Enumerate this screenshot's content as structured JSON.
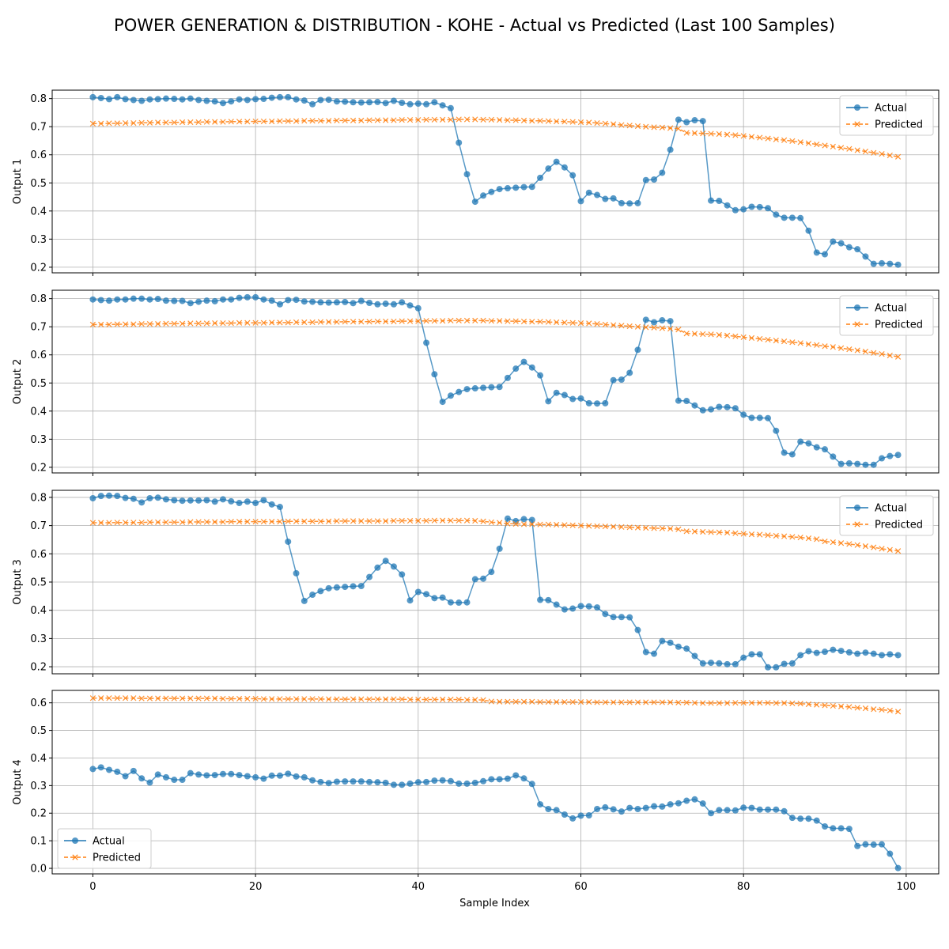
{
  "title": "POWER GENERATION & DISTRIBUTION - KOHE - Actual vs Predicted (Last 100 Samples)",
  "colors": {
    "actual": "#1f77b4",
    "predicted": "#ff7f0e",
    "grid": "#b0b0b0"
  },
  "chart_data": [
    {
      "type": "line",
      "ylabel": "Output 1",
      "xlabel": "",
      "xlim": [
        -5,
        104
      ],
      "ylim": [
        0.18,
        0.83
      ],
      "yticks": [
        0.2,
        0.3,
        0.4,
        0.5,
        0.6,
        0.7,
        0.8
      ],
      "xticks": [
        0,
        20,
        40,
        60,
        80,
        100
      ],
      "legend": "top-right",
      "grid": true,
      "series": [
        {
          "name": "Actual",
          "marker": "circle",
          "values": [
            0.805,
            0.802,
            0.798,
            0.805,
            0.798,
            0.795,
            0.792,
            0.797,
            0.798,
            0.8,
            0.799,
            0.797,
            0.8,
            0.795,
            0.792,
            0.79,
            0.784,
            0.79,
            0.797,
            0.795,
            0.798,
            0.799,
            0.803,
            0.805,
            0.805,
            0.797,
            0.793,
            0.78,
            0.795,
            0.796,
            0.79,
            0.789,
            0.787,
            0.786,
            0.787,
            0.788,
            0.784,
            0.792,
            0.785,
            0.78,
            0.782,
            0.78,
            0.787,
            0.776,
            0.766,
            0.643,
            0.531,
            0.433,
            0.455,
            0.468,
            0.478,
            0.481,
            0.483,
            0.485,
            0.486,
            0.518,
            0.551,
            0.575,
            0.555,
            0.527,
            0.435,
            0.465,
            0.457,
            0.443,
            0.445,
            0.428,
            0.427,
            0.428,
            0.51,
            0.512,
            0.536,
            0.618,
            0.725,
            0.716,
            0.723,
            0.72,
            0.437,
            0.436,
            0.42,
            0.403,
            0.406,
            0.415,
            0.414,
            0.41,
            0.387,
            0.376,
            0.376,
            0.375,
            0.33,
            0.252,
            0.246,
            0.291,
            0.285,
            0.271,
            0.264,
            0.238,
            0.212,
            0.214,
            0.212,
            0.209
          ]
        },
        {
          "name": "Predicted",
          "marker": "x",
          "values": [
            0.711,
            0.711,
            0.712,
            0.712,
            0.713,
            0.713,
            0.714,
            0.714,
            0.715,
            0.715,
            0.715,
            0.716,
            0.716,
            0.716,
            0.717,
            0.717,
            0.717,
            0.718,
            0.718,
            0.718,
            0.719,
            0.719,
            0.719,
            0.72,
            0.72,
            0.72,
            0.721,
            0.721,
            0.721,
            0.721,
            0.722,
            0.722,
            0.722,
            0.722,
            0.723,
            0.723,
            0.723,
            0.723,
            0.724,
            0.724,
            0.724,
            0.725,
            0.725,
            0.725,
            0.725,
            0.726,
            0.726,
            0.726,
            0.725,
            0.725,
            0.724,
            0.723,
            0.723,
            0.722,
            0.721,
            0.721,
            0.72,
            0.719,
            0.718,
            0.717,
            0.716,
            0.715,
            0.713,
            0.711,
            0.709,
            0.706,
            0.704,
            0.702,
            0.7,
            0.698,
            0.697,
            0.695,
            0.693,
            0.678,
            0.677,
            0.676,
            0.675,
            0.674,
            0.672,
            0.67,
            0.667,
            0.664,
            0.661,
            0.658,
            0.655,
            0.652,
            0.649,
            0.645,
            0.641,
            0.637,
            0.633,
            0.629,
            0.625,
            0.621,
            0.616,
            0.612,
            0.607,
            0.603,
            0.598,
            0.593
          ]
        }
      ]
    },
    {
      "type": "line",
      "ylabel": "Output 2",
      "xlabel": "",
      "xlim": [
        -5,
        104
      ],
      "ylim": [
        0.18,
        0.83
      ],
      "yticks": [
        0.2,
        0.3,
        0.4,
        0.5,
        0.6,
        0.7,
        0.8
      ],
      "xticks": [
        0,
        20,
        40,
        60,
        80,
        100
      ],
      "legend": "top-right",
      "grid": true,
      "series": [
        {
          "name": "Actual",
          "marker": "circle",
          "values": [
            0.797,
            0.795,
            0.793,
            0.797,
            0.797,
            0.8,
            0.8,
            0.797,
            0.799,
            0.793,
            0.792,
            0.792,
            0.784,
            0.789,
            0.793,
            0.791,
            0.797,
            0.797,
            0.803,
            0.805,
            0.805,
            0.797,
            0.793,
            0.78,
            0.795,
            0.796,
            0.79,
            0.789,
            0.787,
            0.786,
            0.787,
            0.788,
            0.784,
            0.792,
            0.785,
            0.78,
            0.782,
            0.78,
            0.787,
            0.776,
            0.766,
            0.643,
            0.531,
            0.433,
            0.455,
            0.468,
            0.478,
            0.481,
            0.483,
            0.485,
            0.486,
            0.518,
            0.551,
            0.575,
            0.555,
            0.527,
            0.435,
            0.465,
            0.457,
            0.443,
            0.445,
            0.428,
            0.427,
            0.428,
            0.51,
            0.512,
            0.536,
            0.618,
            0.725,
            0.716,
            0.723,
            0.72,
            0.437,
            0.436,
            0.42,
            0.403,
            0.406,
            0.415,
            0.414,
            0.41,
            0.387,
            0.376,
            0.376,
            0.375,
            0.33,
            0.252,
            0.246,
            0.291,
            0.285,
            0.271,
            0.264,
            0.238,
            0.212,
            0.214,
            0.212,
            0.209,
            0.209,
            0.232,
            0.24,
            0.244
          ]
        },
        {
          "name": "Predicted",
          "marker": "x",
          "values": [
            0.708,
            0.708,
            0.708,
            0.709,
            0.709,
            0.709,
            0.71,
            0.71,
            0.71,
            0.711,
            0.711,
            0.711,
            0.712,
            0.712,
            0.712,
            0.713,
            0.713,
            0.713,
            0.714,
            0.714,
            0.714,
            0.714,
            0.715,
            0.715,
            0.715,
            0.716,
            0.716,
            0.716,
            0.717,
            0.717,
            0.717,
            0.718,
            0.718,
            0.718,
            0.718,
            0.719,
            0.719,
            0.719,
            0.72,
            0.72,
            0.72,
            0.721,
            0.721,
            0.721,
            0.722,
            0.722,
            0.722,
            0.722,
            0.722,
            0.721,
            0.721,
            0.72,
            0.72,
            0.719,
            0.718,
            0.718,
            0.717,
            0.716,
            0.715,
            0.714,
            0.713,
            0.712,
            0.71,
            0.708,
            0.706,
            0.704,
            0.702,
            0.7,
            0.698,
            0.697,
            0.695,
            0.693,
            0.69,
            0.676,
            0.675,
            0.674,
            0.673,
            0.671,
            0.669,
            0.666,
            0.663,
            0.66,
            0.657,
            0.654,
            0.651,
            0.648,
            0.645,
            0.642,
            0.638,
            0.635,
            0.631,
            0.628,
            0.624,
            0.62,
            0.616,
            0.612,
            0.607,
            0.603,
            0.598,
            0.593
          ]
        }
      ]
    },
    {
      "type": "line",
      "ylabel": "Output 3",
      "xlabel": "",
      "xlim": [
        -5,
        104
      ],
      "ylim": [
        0.175,
        0.825
      ],
      "yticks": [
        0.2,
        0.3,
        0.4,
        0.5,
        0.6,
        0.7,
        0.8
      ],
      "xticks": [
        0,
        20,
        40,
        60,
        80,
        100
      ],
      "legend": "top-right",
      "grid": true,
      "series": [
        {
          "name": "Actual",
          "marker": "circle",
          "values": [
            0.797,
            0.805,
            0.806,
            0.805,
            0.798,
            0.795,
            0.782,
            0.797,
            0.799,
            0.793,
            0.79,
            0.788,
            0.789,
            0.789,
            0.79,
            0.785,
            0.793,
            0.786,
            0.78,
            0.785,
            0.78,
            0.79,
            0.775,
            0.766,
            0.643,
            0.531,
            0.433,
            0.455,
            0.468,
            0.478,
            0.481,
            0.483,
            0.485,
            0.486,
            0.518,
            0.551,
            0.575,
            0.555,
            0.527,
            0.435,
            0.465,
            0.457,
            0.443,
            0.445,
            0.428,
            0.427,
            0.428,
            0.51,
            0.512,
            0.536,
            0.618,
            0.725,
            0.716,
            0.723,
            0.72,
            0.437,
            0.436,
            0.42,
            0.403,
            0.406,
            0.415,
            0.414,
            0.41,
            0.387,
            0.376,
            0.376,
            0.375,
            0.33,
            0.252,
            0.246,
            0.291,
            0.285,
            0.271,
            0.264,
            0.238,
            0.212,
            0.214,
            0.212,
            0.209,
            0.209,
            0.232,
            0.244,
            0.244,
            0.198,
            0.198,
            0.21,
            0.212,
            0.241,
            0.255,
            0.249,
            0.253,
            0.26,
            0.256,
            0.251,
            0.246,
            0.25,
            0.246,
            0.241,
            0.244,
            0.241
          ]
        },
        {
          "name": "Predicted",
          "marker": "x",
          "values": [
            0.71,
            0.71,
            0.71,
            0.711,
            0.711,
            0.711,
            0.711,
            0.712,
            0.712,
            0.712,
            0.712,
            0.712,
            0.713,
            0.713,
            0.713,
            0.713,
            0.713,
            0.714,
            0.714,
            0.714,
            0.714,
            0.714,
            0.714,
            0.714,
            0.715,
            0.715,
            0.715,
            0.715,
            0.715,
            0.715,
            0.716,
            0.716,
            0.716,
            0.716,
            0.716,
            0.716,
            0.716,
            0.717,
            0.717,
            0.717,
            0.717,
            0.717,
            0.718,
            0.718,
            0.718,
            0.718,
            0.718,
            0.717,
            0.715,
            0.712,
            0.71,
            0.707,
            0.706,
            0.705,
            0.705,
            0.704,
            0.704,
            0.703,
            0.702,
            0.701,
            0.7,
            0.699,
            0.698,
            0.697,
            0.696,
            0.695,
            0.694,
            0.693,
            0.692,
            0.691,
            0.69,
            0.689,
            0.687,
            0.68,
            0.679,
            0.678,
            0.677,
            0.676,
            0.675,
            0.673,
            0.671,
            0.669,
            0.668,
            0.666,
            0.664,
            0.662,
            0.66,
            0.658,
            0.655,
            0.652,
            0.644,
            0.641,
            0.638,
            0.635,
            0.631,
            0.627,
            0.623,
            0.618,
            0.614,
            0.61
          ]
        }
      ]
    },
    {
      "type": "line",
      "ylabel": "Output 4",
      "xlabel": "Sample Index",
      "xlim": [
        -5,
        104
      ],
      "ylim": [
        -0.02,
        0.645
      ],
      "yticks": [
        0.0,
        0.1,
        0.2,
        0.3,
        0.4,
        0.5,
        0.6
      ],
      "xticks": [
        0,
        20,
        40,
        60,
        80,
        100
      ],
      "legend": "bottom-left",
      "grid": true,
      "series": [
        {
          "name": "Actual",
          "marker": "circle",
          "values": [
            0.36,
            0.366,
            0.357,
            0.35,
            0.334,
            0.353,
            0.326,
            0.311,
            0.34,
            0.33,
            0.321,
            0.321,
            0.345,
            0.34,
            0.337,
            0.338,
            0.342,
            0.342,
            0.338,
            0.334,
            0.33,
            0.325,
            0.336,
            0.336,
            0.343,
            0.333,
            0.33,
            0.319,
            0.313,
            0.309,
            0.314,
            0.315,
            0.315,
            0.315,
            0.313,
            0.312,
            0.31,
            0.303,
            0.303,
            0.307,
            0.312,
            0.313,
            0.318,
            0.319,
            0.316,
            0.307,
            0.307,
            0.31,
            0.316,
            0.323,
            0.323,
            0.325,
            0.337,
            0.326,
            0.306,
            0.232,
            0.215,
            0.211,
            0.195,
            0.181,
            0.191,
            0.192,
            0.215,
            0.221,
            0.214,
            0.206,
            0.219,
            0.215,
            0.219,
            0.225,
            0.224,
            0.232,
            0.236,
            0.245,
            0.25,
            0.235,
            0.2,
            0.211,
            0.211,
            0.21,
            0.22,
            0.219,
            0.213,
            0.213,
            0.213,
            0.207,
            0.183,
            0.18,
            0.18,
            0.173,
            0.152,
            0.145,
            0.145,
            0.143,
            0.081,
            0.087,
            0.086,
            0.087,
            0.053,
            0.001
          ]
        },
        {
          "name": "Predicted",
          "marker": "x",
          "values": [
            0.617,
            0.617,
            0.617,
            0.617,
            0.617,
            0.617,
            0.616,
            0.616,
            0.616,
            0.616,
            0.616,
            0.616,
            0.616,
            0.616,
            0.616,
            0.616,
            0.615,
            0.615,
            0.615,
            0.615,
            0.615,
            0.614,
            0.614,
            0.614,
            0.614,
            0.614,
            0.614,
            0.614,
            0.614,
            0.613,
            0.613,
            0.613,
            0.613,
            0.613,
            0.613,
            0.613,
            0.613,
            0.613,
            0.613,
            0.612,
            0.612,
            0.612,
            0.612,
            0.612,
            0.612,
            0.612,
            0.611,
            0.611,
            0.61,
            0.605,
            0.604,
            0.604,
            0.604,
            0.604,
            0.604,
            0.603,
            0.603,
            0.603,
            0.603,
            0.603,
            0.603,
            0.603,
            0.602,
            0.602,
            0.602,
            0.602,
            0.602,
            0.602,
            0.602,
            0.602,
            0.602,
            0.602,
            0.601,
            0.601,
            0.6,
            0.599,
            0.599,
            0.599,
            0.599,
            0.6,
            0.6,
            0.6,
            0.6,
            0.6,
            0.599,
            0.599,
            0.598,
            0.597,
            0.595,
            0.593,
            0.591,
            0.589,
            0.587,
            0.585,
            0.582,
            0.58,
            0.577,
            0.575,
            0.572,
            0.568
          ]
        }
      ]
    }
  ]
}
